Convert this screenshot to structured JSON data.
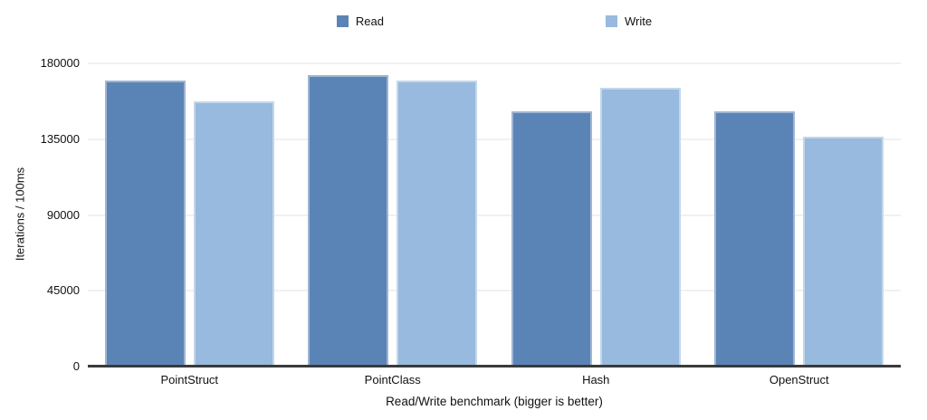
{
  "chart_data": {
    "type": "bar",
    "title": "",
    "xlabel": "Read/Write benchmark (bigger is better)",
    "ylabel": "Iterations / 100ms",
    "categories": [
      "PointStruct",
      "PointClass",
      "Hash",
      "OpenStruct"
    ],
    "series": [
      {
        "name": "Read",
        "color": "#5b84b6",
        "border_color": "#9fb5d3",
        "values": [
          170000,
          173000,
          151500,
          151500
        ]
      },
      {
        "name": "Write",
        "color": "#97bade",
        "border_color": "#c3d7eb",
        "values": [
          157500,
          170000,
          165300,
          136300
        ]
      }
    ],
    "ylim": [
      0,
      180000
    ],
    "yticks": [
      0,
      45000,
      90000,
      135000,
      180000
    ],
    "grid": true,
    "legend_position": "top",
    "colors": {
      "axis_line": "#3a3a3a",
      "gridline": "#f1f1f1",
      "text": "#111111"
    }
  }
}
